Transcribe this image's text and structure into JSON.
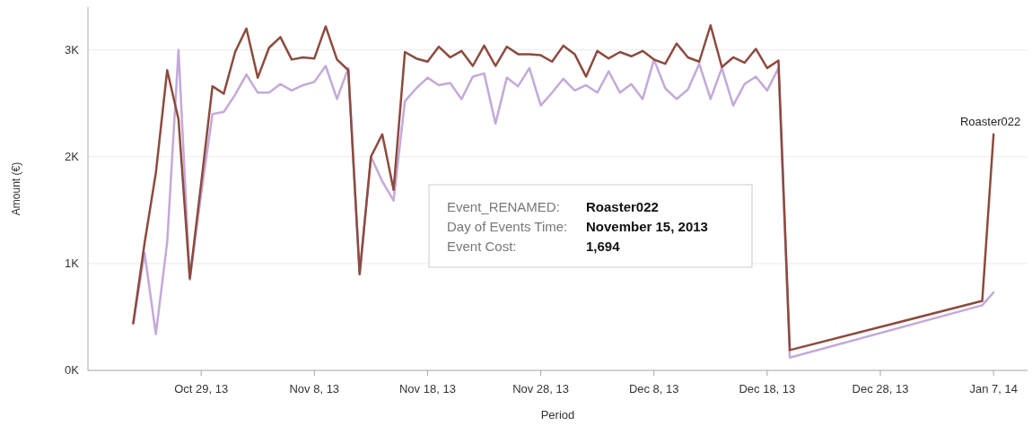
{
  "chart_data": {
    "type": "line",
    "xlabel": "Period",
    "ylabel": "Amount (€)",
    "x": [
      "2013-10-23",
      "2013-10-24",
      "2013-10-25",
      "2013-10-26",
      "2013-10-27",
      "2013-10-28",
      "2013-10-29",
      "2013-10-30",
      "2013-10-31",
      "2013-11-01",
      "2013-11-02",
      "2013-11-03",
      "2013-11-04",
      "2013-11-05",
      "2013-11-06",
      "2013-11-07",
      "2013-11-08",
      "2013-11-09",
      "2013-11-10",
      "2013-11-11",
      "2013-11-12",
      "2013-11-13",
      "2013-11-14",
      "2013-11-15",
      "2013-11-16",
      "2013-11-17",
      "2013-11-18",
      "2013-11-19",
      "2013-11-20",
      "2013-11-21",
      "2013-11-22",
      "2013-11-23",
      "2013-11-24",
      "2013-11-25",
      "2013-11-26",
      "2013-11-27",
      "2013-11-28",
      "2013-11-29",
      "2013-11-30",
      "2013-12-01",
      "2013-12-02",
      "2013-12-03",
      "2013-12-04",
      "2013-12-05",
      "2013-12-06",
      "2013-12-07",
      "2013-12-08",
      "2013-12-09",
      "2013-12-10",
      "2013-12-11",
      "2013-12-12",
      "2013-12-13",
      "2013-12-14",
      "2013-12-15",
      "2013-12-16",
      "2013-12-17",
      "2013-12-18",
      "2013-12-19",
      "2013-12-20",
      "2014-01-06",
      "2014-01-07"
    ],
    "series": [
      {
        "color": "#c3a9d9",
        "values": [
          440,
          1100,
          340,
          1200,
          3000,
          850,
          1650,
          2400,
          2420,
          2580,
          2770,
          2600,
          2600,
          2680,
          2620,
          2670,
          2700,
          2850,
          2540,
          2830,
          900,
          2000,
          1770,
          1590,
          2520,
          2640,
          2740,
          2670,
          2690,
          2540,
          2750,
          2780,
          2310,
          2740,
          2660,
          2830,
          2480,
          2600,
          2730,
          2620,
          2670,
          2600,
          2800,
          2600,
          2680,
          2540,
          2910,
          2640,
          2540,
          2630,
          2870,
          2540,
          2830,
          2480,
          2680,
          2750,
          2620,
          2830,
          120,
          610,
          730
        ]
      },
      {
        "name": "Roaster022",
        "color": "#8c4a3e",
        "values": [
          440,
          1190,
          1850,
          2810,
          2350,
          860,
          1750,
          2660,
          2590,
          2980,
          3200,
          2740,
          3020,
          3120,
          2910,
          2930,
          2920,
          3220,
          2910,
          2810,
          900,
          2000,
          2210,
          1690,
          2980,
          2920,
          2890,
          3030,
          2930,
          2990,
          2850,
          3040,
          2850,
          3030,
          2960,
          2960,
          2950,
          2890,
          3040,
          2960,
          2750,
          2990,
          2920,
          2980,
          2940,
          2990,
          2910,
          2870,
          3060,
          2930,
          2890,
          3230,
          2840,
          2930,
          2880,
          3010,
          2830,
          2900,
          190,
          650,
          2210
        ]
      }
    ],
    "xlim": [
      "2013-10-19",
      "2014-01-10"
    ],
    "xticks": [
      {
        "value": "2013-10-29",
        "label": "Oct 29, 13"
      },
      {
        "value": "2013-11-08",
        "label": "Nov 8, 13"
      },
      {
        "value": "2013-11-18",
        "label": "Nov 18, 13"
      },
      {
        "value": "2013-11-28",
        "label": "Nov 28, 13"
      },
      {
        "value": "2013-12-08",
        "label": "Dec 8, 13"
      },
      {
        "value": "2013-12-18",
        "label": "Dec 18, 13"
      },
      {
        "value": "2013-12-28",
        "label": "Dec 28, 13"
      },
      {
        "value": "2014-01-07",
        "label": "Jan 7, 14"
      }
    ],
    "ylim": [
      0,
      3400
    ],
    "yticks": [
      {
        "value": 0,
        "label": "0K"
      },
      {
        "value": 1000,
        "label": "1K"
      },
      {
        "value": 2000,
        "label": "2K"
      },
      {
        "value": 3000,
        "label": "3K"
      }
    ],
    "grid": "y",
    "annotations": [
      "Event_RENAMED:",
      "Roaster022",
      "Day of Events Time:",
      "November 15, 2013",
      "Event Cost:",
      "1,694"
    ]
  }
}
